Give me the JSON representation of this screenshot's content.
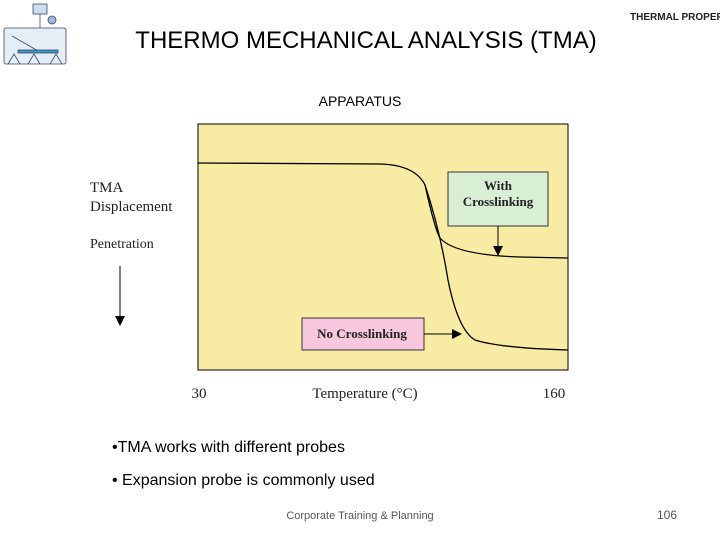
{
  "header": {
    "title": "THERMO MECHANICAL ANALYSIS (TMA)",
    "logo_text": "THERMAL PROPERTIES"
  },
  "subtitle": "APPARATUS",
  "figure": {
    "y_label": [
      "TMA",
      "Displacement"
    ],
    "direction_label": "Penetration",
    "x_start": "30",
    "x_label": "Temperature (°C)",
    "x_end": "160",
    "annotation_with": [
      "With",
      "Crosslinking"
    ],
    "annotation_without": "No Crosslinking"
  },
  "bullets": [
    "•TMA works with different probes",
    "• Expansion probe is commonly used"
  ],
  "footer": {
    "text": "Corporate Training & Planning",
    "page": "106"
  }
}
